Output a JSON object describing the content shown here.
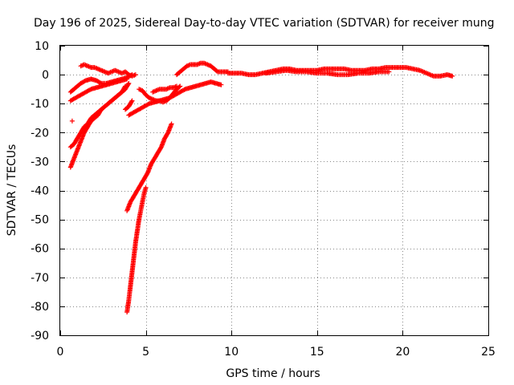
{
  "chart_data": {
    "type": "scatter",
    "title": "Day 196 of 2025, Sidereal Day-to-day VTEC variation (SDTVAR) for receiver mung",
    "xlabel": "GPS time / hours",
    "ylabel": "SDTVAR / TECUs",
    "xlim": [
      0,
      25
    ],
    "ylim": [
      -90,
      10
    ],
    "x_ticks": [
      0,
      5,
      10,
      15,
      20,
      25
    ],
    "y_ticks": [
      10,
      0,
      -10,
      -20,
      -30,
      -40,
      -50,
      -60,
      -70,
      -80,
      -90
    ],
    "grid": true,
    "marker": "plus",
    "color": "#ff0000",
    "series": [
      {
        "x": [
          0.6,
          0.8,
          1.0,
          1.2,
          1.4,
          1.6,
          1.8,
          2.0,
          2.2,
          2.4,
          2.6,
          2.8,
          3.0,
          3.2,
          3.4,
          3.6,
          3.8,
          4.0
        ],
        "values": [
          -25,
          -24,
          -22,
          -20,
          -18,
          -17,
          -15,
          -14,
          -13,
          -12,
          -11,
          -10,
          -9,
          -8,
          -7,
          -6,
          -5,
          -3
        ]
      },
      {
        "x": [
          0.6,
          0.8,
          1.0,
          1.2,
          1.4,
          1.6,
          1.8,
          2.0,
          2.2,
          2.4,
          2.6,
          2.8,
          3.0,
          3.2,
          3.4,
          3.6,
          3.8
        ],
        "values": [
          -32,
          -29,
          -26,
          -23,
          -20,
          -18,
          -16,
          -15,
          -14,
          -12,
          -11,
          -10,
          -9,
          -8,
          -7,
          -6,
          -4
        ]
      },
      {
        "x": [
          0.6,
          0.9,
          1.2,
          1.5,
          1.8,
          2.1,
          2.4,
          2.7,
          3.0,
          3.3,
          3.6,
          3.9
        ],
        "values": [
          -9,
          -8,
          -7,
          -6,
          -5,
          -4.5,
          -4,
          -3.5,
          -3,
          -2.5,
          -2,
          -1.5
        ]
      },
      {
        "x": [
          0.6,
          0.9,
          1.2,
          1.5,
          1.8,
          2.1,
          2.4,
          2.7,
          3.0,
          3.3,
          3.6,
          3.9,
          4.2
        ],
        "values": [
          -6,
          -4.5,
          -3,
          -2,
          -1.5,
          -2,
          -3,
          -3,
          -2.5,
          -2,
          -1.5,
          -1,
          0
        ]
      },
      {
        "x": [
          1.2,
          1.4,
          1.6,
          1.8,
          2.0,
          2.2,
          2.4,
          2.6,
          2.8,
          3.0,
          3.2,
          3.4,
          3.6,
          3.8,
          4.0,
          4.2,
          4.4
        ],
        "values": [
          3,
          3.5,
          3,
          2.5,
          2.5,
          2,
          1.5,
          1,
          0.5,
          1,
          1.5,
          1,
          0.5,
          1,
          0,
          -0.5,
          0
        ]
      },
      {
        "x": [
          3.9,
          4.0,
          4.1,
          4.2,
          4.3,
          4.4,
          4.5,
          4.6,
          4.7,
          4.8,
          4.9,
          5.0
        ],
        "values": [
          -82,
          -78,
          -73,
          -68,
          -63,
          -58,
          -54,
          -50,
          -47,
          -44,
          -41,
          -39
        ]
      },
      {
        "x": [
          3.9,
          4.1,
          4.3,
          4.5,
          4.7,
          4.9,
          5.1,
          5.3,
          5.5,
          5.7,
          5.9,
          6.1,
          6.3,
          6.5
        ],
        "values": [
          -47,
          -44,
          -42,
          -40,
          -38,
          -36,
          -34,
          -31,
          -29,
          -27,
          -25,
          -22,
          -20,
          -17
        ]
      },
      {
        "x": [
          3.8,
          4.0,
          4.2
        ],
        "values": [
          -12,
          -11,
          -9
        ]
      },
      {
        "x": [
          4.0,
          4.3,
          4.6,
          4.9,
          5.2,
          5.5,
          5.8,
          6.1,
          6.4,
          6.7,
          7.0,
          7.3,
          7.6,
          7.9,
          8.2,
          8.5,
          8.8,
          9.1,
          9.4
        ],
        "values": [
          -14,
          -13,
          -12,
          -11,
          -10,
          -9.5,
          -9,
          -8.5,
          -8,
          -7,
          -6,
          -5,
          -4.5,
          -4,
          -3.5,
          -3,
          -2.5,
          -3,
          -3.5
        ]
      },
      {
        "x": [
          4.6,
          4.8,
          5.0,
          5.2,
          5.4,
          5.6,
          5.8,
          6.0,
          6.2,
          6.4,
          6.6,
          6.8,
          7.0
        ],
        "values": [
          -5,
          -5.5,
          -7,
          -8,
          -8.5,
          -9,
          -9,
          -9.5,
          -9,
          -8,
          -6.5,
          -5,
          -4
        ]
      },
      {
        "x": [
          5.4,
          5.6,
          5.8,
          6.0,
          6.2,
          6.4,
          6.6,
          6.8
        ],
        "values": [
          -6,
          -5.5,
          -5,
          -5,
          -5,
          -4.5,
          -4.5,
          -4
        ]
      },
      {
        "x": [
          6.8,
          7.0,
          7.2,
          7.4,
          7.6,
          7.8,
          8.0,
          8.2,
          8.4,
          8.6,
          8.8,
          9.0,
          9.2,
          9.4,
          9.6,
          9.8
        ],
        "values": [
          0,
          1,
          2,
          3,
          3.5,
          3.5,
          3.5,
          4,
          4,
          3.5,
          3,
          2,
          1,
          1,
          1,
          1
        ]
      },
      {
        "x": [
          9.8,
          10.2,
          10.6,
          11.0,
          11.4,
          11.8,
          12.2,
          12.6,
          13.0,
          13.4,
          13.8,
          14.2,
          14.6,
          15.0,
          15.4,
          15.8,
          16.2,
          16.6,
          17.0,
          17.4,
          17.8,
          18.2,
          18.6,
          19.0,
          19.4,
          19.8,
          20.2,
          20.6,
          21.0,
          21.4,
          21.8,
          22.2,
          22.6,
          22.9
        ],
        "values": [
          0.5,
          0.5,
          0.5,
          0,
          0,
          0.5,
          1,
          1.5,
          2,
          2,
          1.5,
          1.5,
          1.5,
          1.5,
          2,
          2,
          2,
          2,
          1.5,
          1.5,
          1.5,
          2,
          2,
          2.5,
          2.5,
          2.5,
          2.5,
          2,
          1.5,
          0.5,
          -0.5,
          -0.5,
          0,
          -0.5
        ]
      },
      {
        "x": [
          12.0,
          12.6,
          13.2,
          13.8,
          14.4,
          15.0,
          15.6,
          16.2,
          16.8,
          17.4,
          18.0,
          18.6,
          19.2
        ],
        "values": [
          0.5,
          1,
          1.5,
          1,
          1,
          0.5,
          0.5,
          0,
          0,
          0.5,
          0.5,
          1,
          1
        ]
      },
      {
        "x": [
          0.7
        ],
        "values": [
          -16
        ]
      }
    ]
  }
}
